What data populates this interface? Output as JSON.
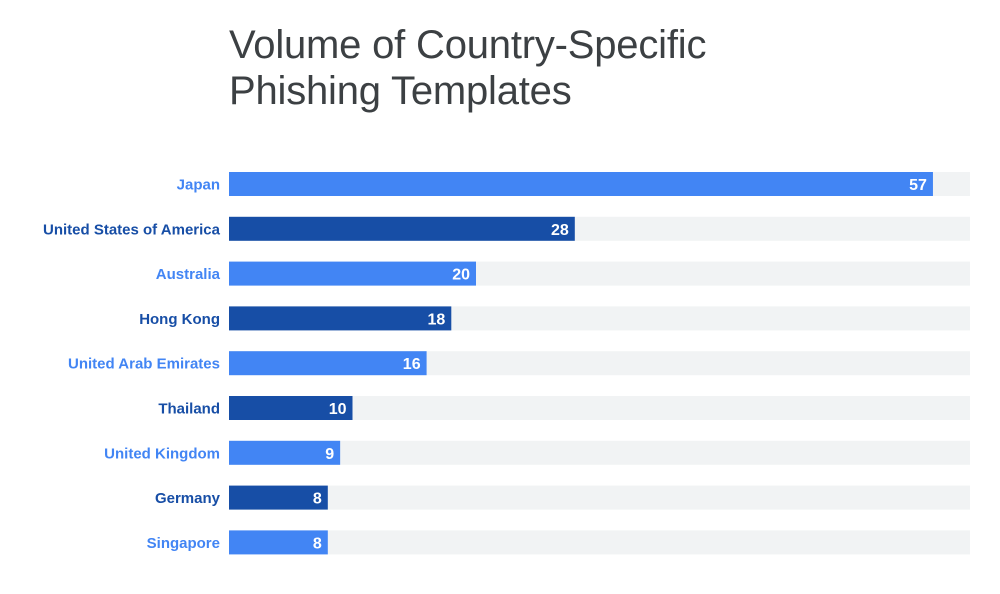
{
  "chart_data": {
    "type": "bar",
    "orientation": "horizontal",
    "title_lines": [
      "Volume of Country-Specific",
      "Phishing Templates"
    ],
    "categories": [
      "Japan",
      "United States of America",
      "Australia",
      "Hong Kong",
      "United Arab Emirates",
      "Thailand",
      "United Kingdom",
      "Germany",
      "Singapore"
    ],
    "values": [
      57,
      28,
      20,
      18,
      16,
      10,
      9,
      8,
      8
    ],
    "xlim": [
      0,
      60
    ],
    "grid": false,
    "legend": "none",
    "data_labels": true,
    "colors": {
      "light_bar": "#4285f4",
      "dark_bar": "#174ea6",
      "track": "#f1f3f4",
      "title": "#3c4043"
    }
  }
}
